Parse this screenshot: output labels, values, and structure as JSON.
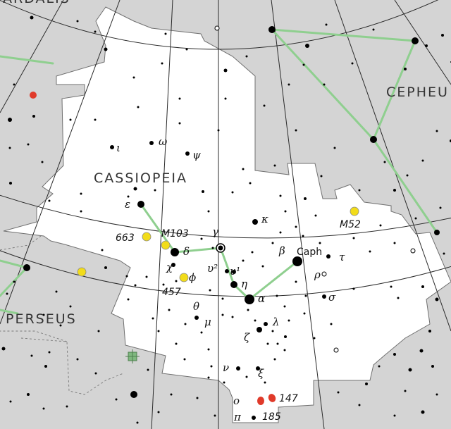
{
  "map": {
    "constellations": {
      "main": "CASSIOPEIA",
      "cepheus": "CEPHEU",
      "perseus": "PERSEUS",
      "top_cut": "ARDALIS"
    },
    "star_labels": {
      "epsilon": "ε",
      "iota": "ι",
      "omega": "ω",
      "psi": "ψ",
      "delta": "δ",
      "gamma": "γ",
      "kappa": "κ",
      "beta": "β",
      "caph": "Caph",
      "tau": "τ",
      "rho": "ρ",
      "sigma": "σ",
      "alpha": "α",
      "eta": "η",
      "upsilon1": "υ¹",
      "upsilon2": "υ²",
      "chi": "χ",
      "phi": "ϕ",
      "theta": "θ",
      "mu": "μ",
      "zeta": "ζ",
      "lambda": "λ",
      "nu": "ν",
      "xi": "ξ",
      "omicron": "ο",
      "pi": "π"
    },
    "object_labels": {
      "m103": "M103",
      "ngc663": "663",
      "ngc457": "457",
      "m52": "M52",
      "ngc147": "147",
      "ngc185": "185"
    },
    "colors": {
      "sky_outside": "#d4d4d4",
      "region": "#ffffff",
      "constellation_line": "#8fcf8f",
      "cluster": "#f2dc1a",
      "galaxy": "#e03a2a",
      "grid": "#2a2a2a"
    },
    "icons": [
      "star-dot-icon",
      "open-cluster-icon",
      "galaxy-icon",
      "variable-star-icon",
      "nebula-icon"
    ]
  }
}
